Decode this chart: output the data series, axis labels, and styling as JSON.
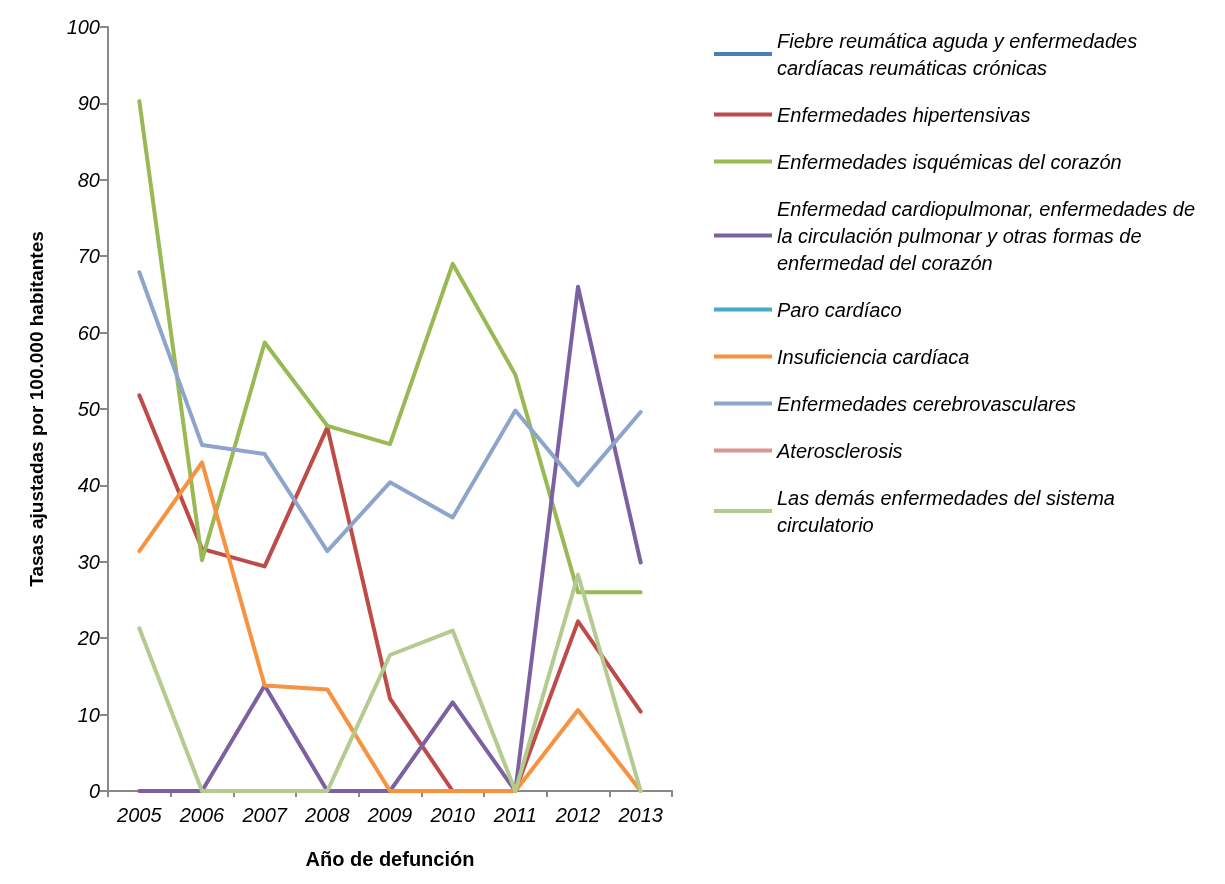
{
  "chart_data": {
    "type": "line",
    "xlabel": "Año de defunción",
    "ylabel": "Tasas ajustadas por 100.000 habitantes",
    "categories": [
      "2005",
      "2006",
      "2007",
      "2008",
      "2009",
      "2010",
      "2011",
      "2012",
      "2013"
    ],
    "ylim": [
      0,
      100
    ],
    "yticks": [
      0,
      10,
      20,
      30,
      40,
      50,
      60,
      70,
      80,
      90,
      100
    ],
    "grid": false,
    "legend": "right",
    "marker": "none",
    "line_style": "solid",
    "series": [
      {
        "name": "Fiebre reumática aguda y enfermedades cardíacas reumáticas crónicas",
        "color": "#4a7ebb",
        "values": [
          null,
          null,
          null,
          null,
          null,
          null,
          null,
          null,
          null
        ]
      },
      {
        "name": "Enfermedades hipertensivas",
        "color": "#be4b48",
        "values": [
          51.8,
          31.7,
          29.4,
          47.6,
          12.1,
          0,
          0,
          22.2,
          10.4
        ]
      },
      {
        "name": "Enfermedades isquémicas del corazón",
        "color": "#98b954",
        "values": [
          90.3,
          30.2,
          58.7,
          47.8,
          45.4,
          69.0,
          54.5,
          26,
          26
        ]
      },
      {
        "name": "Enfermedad cardiopulmonar, enfermedades de la circulación pulmonar y otras formas de enfermedad del corazón",
        "color": "#7d60a0",
        "values": [
          0,
          0,
          13.8,
          0,
          0,
          11.6,
          0,
          66.0,
          29.9
        ]
      },
      {
        "name": "Paro cardíaco",
        "color": "#46aac5",
        "values": [
          null,
          null,
          null,
          null,
          null,
          null,
          null,
          null,
          null
        ]
      },
      {
        "name": "Insuficiencia cardíaca",
        "color": "#f69240",
        "values": [
          31.4,
          43.0,
          13.8,
          13.3,
          0,
          0,
          0,
          10.6,
          0
        ]
      },
      {
        "name": "Enfermedades cerebrovasculares",
        "color": "#8ea5cb",
        "values": [
          67.9,
          45.3,
          44.1,
          31.4,
          40.4,
          35.8,
          49.8,
          40.0,
          49.6
        ]
      },
      {
        "name": "Aterosclerosis",
        "color": "#d99694",
        "values": [
          null,
          null,
          null,
          null,
          null,
          null,
          null,
          null,
          null
        ]
      },
      {
        "name": "Las demás enfermedades del sistema circulatorio",
        "color": "#b3cb8e",
        "values": [
          21.3,
          0,
          0,
          0,
          17.8,
          21.0,
          0,
          28.3,
          0
        ]
      }
    ]
  }
}
